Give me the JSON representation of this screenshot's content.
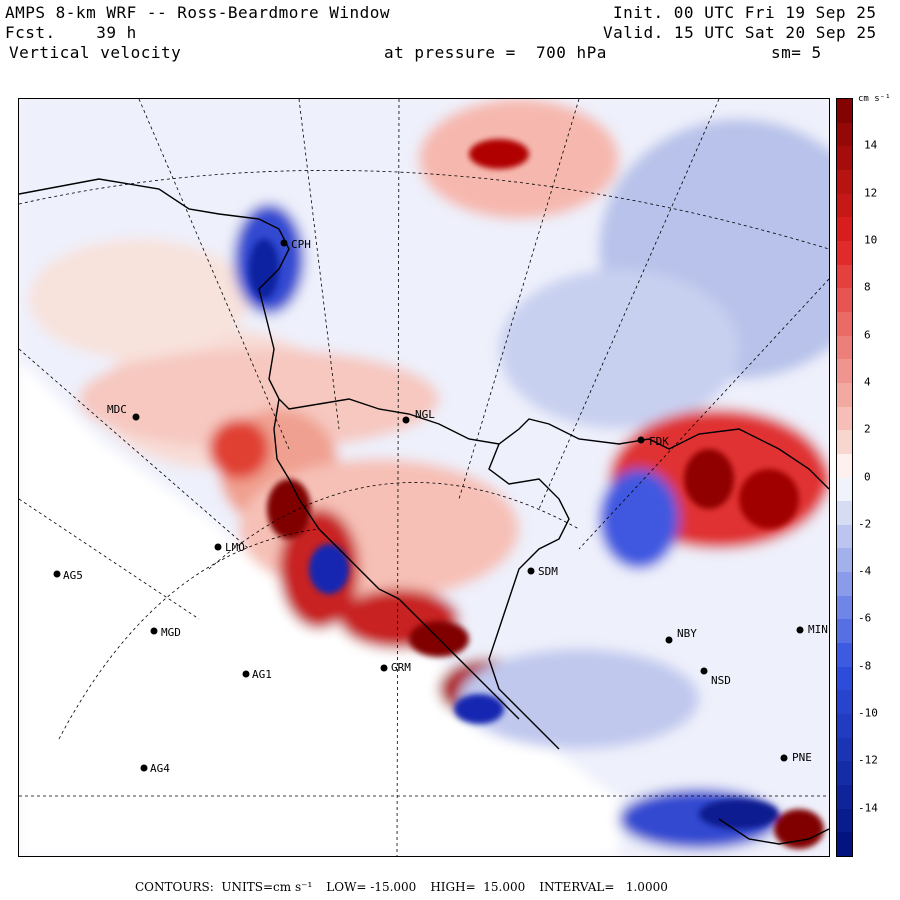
{
  "header": {
    "model": "AMPS 8-km WRF -- Ross-Beardmore Window",
    "forecast": "Fcst.    39 h",
    "variable": "Vertical velocity",
    "init": "Init. 00 UTC Fri 19 Sep 25",
    "valid": "Valid. 15 UTC Sat 20 Sep 25",
    "pressure": "at pressure =  700 hPa",
    "smoothing": "sm= 5"
  },
  "colorbar": {
    "unit": "cm s⁻¹",
    "ticks": [
      "14",
      "12",
      "10",
      "8",
      "6",
      "4",
      "2",
      "0",
      "-2",
      "-4",
      "-6",
      "-8",
      "-10",
      "-12",
      "-14"
    ],
    "tick_values": [
      14,
      12,
      10,
      8,
      6,
      4,
      2,
      0,
      -2,
      -4,
      -6,
      -8,
      -10,
      -12,
      -14
    ],
    "range": [
      -16,
      16
    ],
    "colors": {
      "positive_max": "#7a0000",
      "positive_mid": "#e02020",
      "positive_low": "#f6c8c0",
      "zero": "#ffffff",
      "negative_low": "#c8d0f0",
      "negative_mid": "#3050e0",
      "negative_max": "#00107a"
    }
  },
  "stations": [
    {
      "id": "CPH"
    },
    {
      "id": "MDC"
    },
    {
      "id": "NGL"
    },
    {
      "id": "FDK"
    },
    {
      "id": "SDM"
    },
    {
      "id": "NBY"
    },
    {
      "id": "NSD"
    },
    {
      "id": "MIN"
    },
    {
      "id": "AG5"
    },
    {
      "id": "MGD"
    },
    {
      "id": "AG1"
    },
    {
      "id": "AG4"
    },
    {
      "id": "GRM"
    },
    {
      "id": "LMO"
    },
    {
      "id": "PNE"
    }
  ],
  "footer": {
    "contours": "CONTOURS:  UNITS=cm s⁻¹",
    "low": "LOW= -15.000",
    "high": "HIGH=  15.000",
    "interval": "INTERVAL=   1.0000"
  }
}
